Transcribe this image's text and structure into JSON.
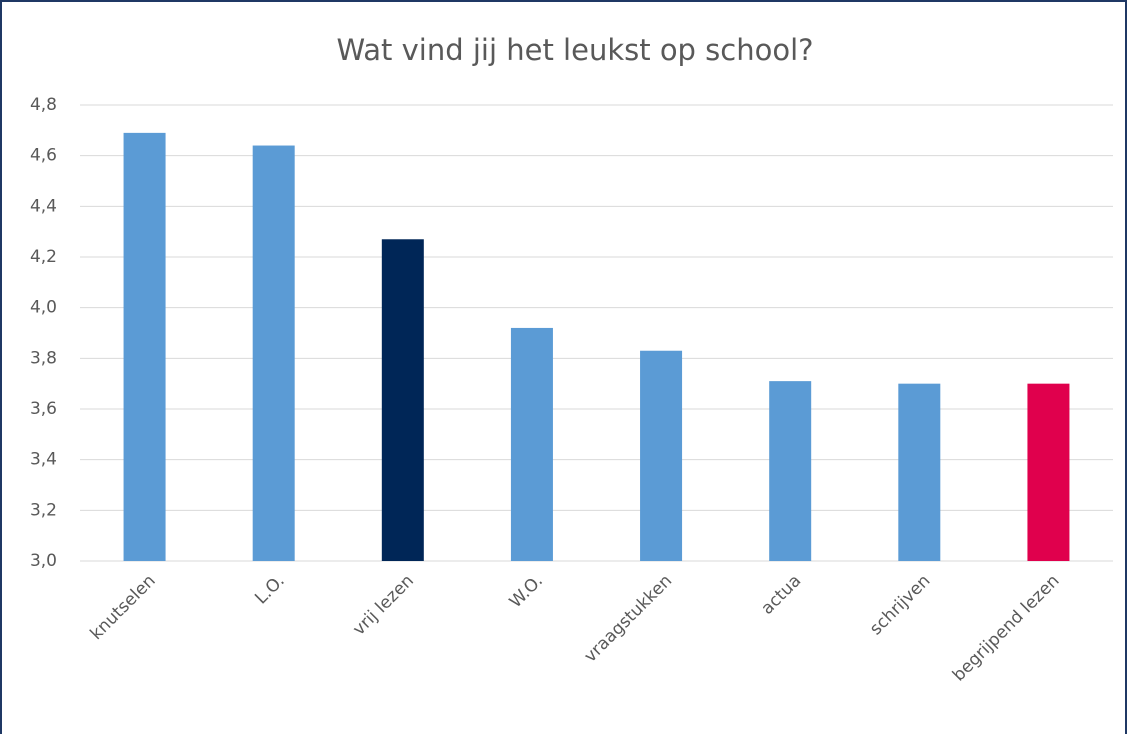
{
  "chart_data": {
    "type": "bar",
    "title": "Wat vind jij het leukst op school?",
    "categories": [
      "knutselen",
      "L.O.",
      "vrij lezen",
      "W.O.",
      "vraagstukken",
      "actua",
      "schrijven",
      "begrijpend lezen"
    ],
    "values": [
      4.69,
      4.64,
      4.27,
      3.92,
      3.83,
      3.71,
      3.7,
      3.7
    ],
    "colors": [
      "#5b9bd5",
      "#5b9bd5",
      "#002657",
      "#5b9bd5",
      "#5b9bd5",
      "#5b9bd5",
      "#5b9bd5",
      "#e0004d"
    ],
    "ylim": [
      3.0,
      4.8
    ],
    "yticks": [
      {
        "value": 3.0,
        "label": "3,0"
      },
      {
        "value": 3.2,
        "label": "3,2"
      },
      {
        "value": 3.4,
        "label": "3,4"
      },
      {
        "value": 3.6,
        "label": "3,6"
      },
      {
        "value": 3.8,
        "label": "3,8"
      },
      {
        "value": 4.0,
        "label": "4,0"
      },
      {
        "value": 4.2,
        "label": "4,2"
      },
      {
        "value": 4.4,
        "label": "4,4"
      },
      {
        "value": 4.6,
        "label": "4,6"
      },
      {
        "value": 4.8,
        "label": "4,8"
      }
    ],
    "grid": true
  }
}
